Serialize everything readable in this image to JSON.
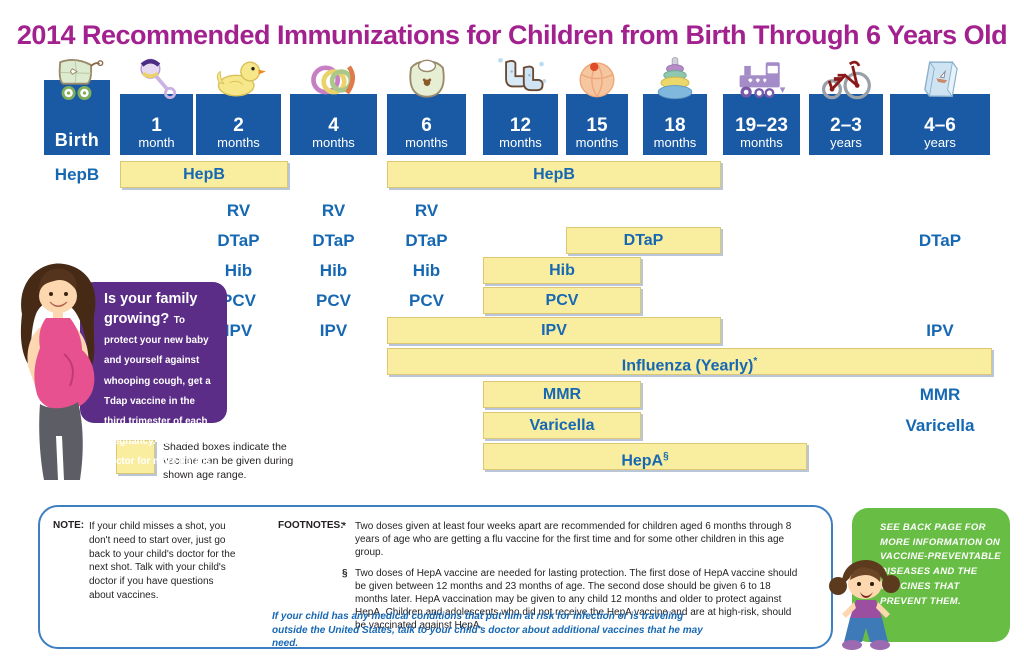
{
  "title": "2014 Recommended Immunizations for Children from Birth Through 6 Years Old",
  "colors": {
    "title": "#a3218f",
    "header_box": "#1a5aa5",
    "accent_text": "#1768b3",
    "range_fill": "#f9ed9f",
    "range_border": "#dcc873",
    "bubble_purple": "#5b2d87",
    "note_green": "#68bd45",
    "footer_border": "#3d7fc1"
  },
  "columns": [
    {
      "id": "birth",
      "line1": "Birth",
      "line2": "",
      "icon": "stroller-icon"
    },
    {
      "id": "1m",
      "line1": "1",
      "line2": "month",
      "icon": "rattle-icon"
    },
    {
      "id": "2m",
      "line1": "2",
      "line2": "months",
      "icon": "duck-icon"
    },
    {
      "id": "4m",
      "line1": "4",
      "line2": "months",
      "icon": "teething-rings-icon"
    },
    {
      "id": "6m",
      "line1": "6",
      "line2": "months",
      "icon": "bib-icon"
    },
    {
      "id": "12m",
      "line1": "12",
      "line2": "months",
      "icon": "booties-icon"
    },
    {
      "id": "15m",
      "line1": "15",
      "line2": "months",
      "icon": "ball-icon"
    },
    {
      "id": "18m",
      "line1": "18",
      "line2": "months",
      "icon": "ring-stacker-icon"
    },
    {
      "id": "19-23m",
      "line1": "19–23",
      "line2": "months",
      "icon": "train-icon"
    },
    {
      "id": "2-3y",
      "line1": "2–3",
      "line2": "years",
      "icon": "tricycle-icon"
    },
    {
      "id": "4-6y",
      "line1": "4–6",
      "line2": "years",
      "icon": "book-icon"
    }
  ],
  "schedule": [
    {
      "vaccine": "HepB",
      "items": [
        {
          "type": "label",
          "col": "birth",
          "text": "HepB"
        },
        {
          "type": "box",
          "from": "1m",
          "to": "2m",
          "text": "HepB"
        },
        {
          "type": "box",
          "from": "6m",
          "to": "18m",
          "text": "HepB"
        }
      ]
    },
    {
      "vaccine": "RV",
      "items": [
        {
          "type": "label",
          "col": "2m",
          "text": "RV"
        },
        {
          "type": "label",
          "col": "4m",
          "text": "RV"
        },
        {
          "type": "label",
          "col": "6m",
          "text": "RV"
        }
      ]
    },
    {
      "vaccine": "DTaP",
      "items": [
        {
          "type": "label",
          "col": "2m",
          "text": "DTaP"
        },
        {
          "type": "label",
          "col": "4m",
          "text": "DTaP"
        },
        {
          "type": "label",
          "col": "6m",
          "text": "DTaP"
        },
        {
          "type": "box",
          "from": "15m",
          "to": "18m",
          "text": "DTaP"
        },
        {
          "type": "label",
          "col": "4-6y",
          "text": "DTaP"
        }
      ]
    },
    {
      "vaccine": "Hib",
      "items": [
        {
          "type": "label",
          "col": "2m",
          "text": "Hib"
        },
        {
          "type": "label",
          "col": "4m",
          "text": "Hib"
        },
        {
          "type": "label",
          "col": "6m",
          "text": "Hib"
        },
        {
          "type": "box",
          "from": "12m",
          "to": "15m",
          "text": "Hib"
        }
      ]
    },
    {
      "vaccine": "PCV",
      "items": [
        {
          "type": "label",
          "col": "2m",
          "text": "PCV"
        },
        {
          "type": "label",
          "col": "4m",
          "text": "PCV"
        },
        {
          "type": "label",
          "col": "6m",
          "text": "PCV"
        },
        {
          "type": "box",
          "from": "12m",
          "to": "15m",
          "text": "PCV"
        }
      ]
    },
    {
      "vaccine": "IPV",
      "items": [
        {
          "type": "label",
          "col": "2m",
          "text": "IPV"
        },
        {
          "type": "label",
          "col": "4m",
          "text": "IPV"
        },
        {
          "type": "box",
          "from": "6m",
          "to": "18m",
          "text": "IPV"
        },
        {
          "type": "label",
          "col": "4-6y",
          "text": "IPV"
        }
      ]
    },
    {
      "vaccine": "Influenza",
      "items": [
        {
          "type": "box",
          "from": "6m",
          "to": "4-6y",
          "text": "Influenza (Yearly)*"
        }
      ]
    },
    {
      "vaccine": "MMR",
      "items": [
        {
          "type": "box",
          "from": "12m",
          "to": "15m",
          "text": "MMR"
        },
        {
          "type": "label",
          "col": "4-6y",
          "text": "MMR"
        }
      ]
    },
    {
      "vaccine": "Varicella",
      "items": [
        {
          "type": "box",
          "from": "12m",
          "to": "15m",
          "text": "Varicella"
        },
        {
          "type": "label",
          "col": "4-6y",
          "text": "Varicella"
        }
      ]
    },
    {
      "vaccine": "HepA",
      "items": [
        {
          "type": "box",
          "from": "12m",
          "to": "19-23m",
          "text": "HepA§"
        }
      ]
    }
  ],
  "growing_bubble": {
    "heading": "Is your family growing?",
    "body": "To protect your new baby and yourself against whooping cough, get a Tdap vaccine in the third trimester of each pregnancy. Talk to your doctor for more details."
  },
  "legend": {
    "text": "Shaded boxes indicate the vaccine can be given during shown age range."
  },
  "footer": {
    "note_label": "NOTE:",
    "note_text": "If your child misses a shot, you don't need to start over, just go back to your child's doctor for the next shot. Talk with your child's doctor if you have questions about vaccines.",
    "footnotes_label": "FOOTNOTES:",
    "footnotes": [
      {
        "marker": "*",
        "text": "Two doses given at least four weeks apart are recommended for children aged 6 months through 8 years of age who are getting a flu vaccine for the first time and for some other children in this age group."
      },
      {
        "marker": "§",
        "text": "Two doses of HepA vaccine are needed for lasting protection. The first dose of HepA vaccine should be given between 12 months and 23 months of age. The second dose should be given 6 to 18 months later. HepA vaccination may be given to any child 12 months and older to protect against HepA. Children and adolescents who did not receive the HepA vaccine and are at high-risk, should be vaccinated against HepA."
      }
    ],
    "travel_note": "If your child has any medical conditions that put him at risk for infection or is traveling outside the United States, talk to your child's doctor about additional vaccines that he may need."
  },
  "back_page_box": {
    "text": "SEE BACK PAGE FOR MORE INFORMATION ON VACCINE-PREVENTABLE DISEASES AND THE VACCINES THAT PREVENT THEM."
  }
}
